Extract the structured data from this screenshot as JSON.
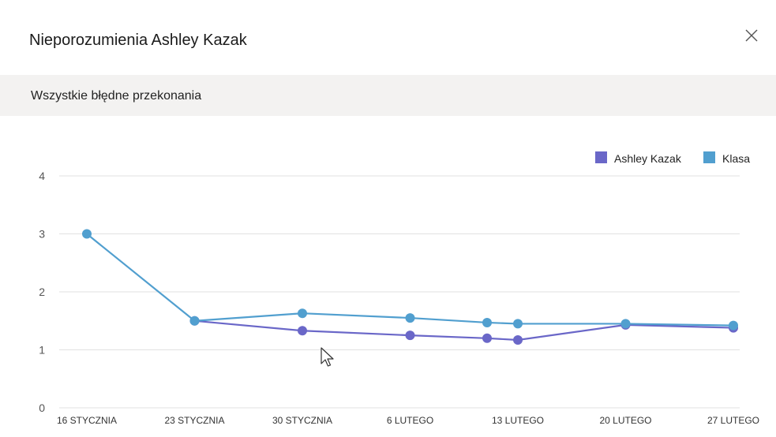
{
  "dialog": {
    "title": "Nieporozumienia Ashley Kazak",
    "close_icon": "close-icon"
  },
  "subheader": {
    "title": "Wszystkie błędne przekonania"
  },
  "colors": {
    "student": "#6a67c8",
    "class": "#519fcf",
    "grid": "#e1e1e1",
    "axis_text": "#555555",
    "subheader_bg": "#f3f2f1"
  },
  "chart_data": {
    "type": "line",
    "categories": [
      "16 STYCZNIA",
      "23 STYCZNIA",
      "30 STYCZNIA",
      "6 LUTEGO",
      "13 LUTEGO",
      "20 LUTEGO",
      "27 LUTEGO"
    ],
    "x": [
      0,
      7,
      14,
      21,
      26,
      28,
      35,
      42
    ],
    "xlim": [
      0,
      42
    ],
    "ylim": [
      0,
      4
    ],
    "yticks": [
      "0",
      "1",
      "2",
      "3",
      "4"
    ],
    "grid": true,
    "legend_position": "top-right",
    "series": [
      {
        "name": "Ashley Kazak",
        "color": "#6a67c8",
        "x": [
          7,
          14,
          21,
          26,
          28,
          35,
          42
        ],
        "values": [
          1.5,
          1.33,
          1.25,
          1.2,
          1.17,
          1.43,
          1.38
        ]
      },
      {
        "name": "Klasa",
        "color": "#519fcf",
        "x": [
          0,
          7,
          14,
          21,
          26,
          28,
          35,
          42
        ],
        "values": [
          3.0,
          1.5,
          1.63,
          1.55,
          1.47,
          1.45,
          1.45,
          1.42
        ]
      }
    ]
  }
}
